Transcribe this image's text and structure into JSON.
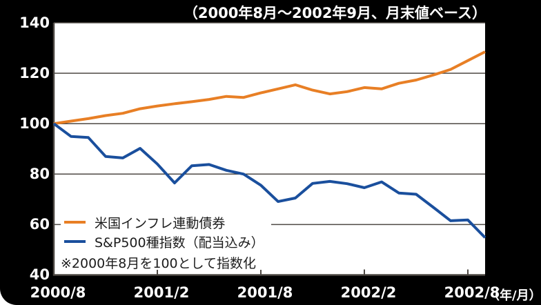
{
  "colors": {
    "background": "#000000",
    "plot_background": "#ffffff",
    "grid": "#4d4843",
    "axis": "#4d4843",
    "text_on_dark": "#ffffff",
    "text_on_light": "#1c1c1c",
    "series_bond": "#e87f25",
    "series_sp500": "#1a4f9d"
  },
  "chart_data": {
    "type": "line",
    "title": "（2000年8月～2002年9月、月末値ベース）",
    "note": "※2000年8月を100として指数化",
    "x_unit": "（年/月）",
    "ylim": [
      40,
      140
    ],
    "yticks": [
      "140",
      "120",
      "100",
      "80",
      "60",
      "40"
    ],
    "ytick_values": [
      140,
      120,
      100,
      80,
      60,
      40
    ],
    "xticks": [
      "2000/8",
      "2001/2",
      "2001/8",
      "2002/2",
      "2002/8"
    ],
    "xtick_month_indices": [
      0,
      6,
      12,
      18,
      24
    ],
    "grid": true,
    "legend_position": "bottom-left-inside",
    "months": [
      "2000/8",
      "2000/9",
      "2000/10",
      "2000/11",
      "2000/12",
      "2001/1",
      "2001/2",
      "2001/3",
      "2001/4",
      "2001/5",
      "2001/6",
      "2001/7",
      "2001/8",
      "2001/9",
      "2001/10",
      "2001/11",
      "2001/12",
      "2002/1",
      "2002/2",
      "2002/3",
      "2002/4",
      "2002/5",
      "2002/6",
      "2002/7",
      "2002/8",
      "2002/9"
    ],
    "series": [
      {
        "name": "米国インフレ連動債券",
        "color": "#e87f25",
        "values": [
          100,
          101,
          102,
          103.2,
          104.1,
          105.9,
          107.0,
          107.9,
          108.7,
          109.6,
          110.8,
          110.4,
          112.2,
          113.8,
          115.4,
          113.3,
          111.8,
          112.7,
          114.3,
          113.8,
          116.0,
          117.3,
          119.3,
          121.5,
          125.0,
          128.5
        ]
      },
      {
        "name": "S&P500種指数（配当込み）",
        "color": "#1a4f9d",
        "values": [
          100,
          94.9,
          94.5,
          87.0,
          86.4,
          90.2,
          84.0,
          76.5,
          83.3,
          83.8,
          81.5,
          80.0,
          75.6,
          69.1,
          70.5,
          76.3,
          77.1,
          76.2,
          74.6,
          76.9,
          72.5,
          72.0,
          66.8,
          61.5,
          61.8,
          54.8
        ]
      }
    ]
  }
}
